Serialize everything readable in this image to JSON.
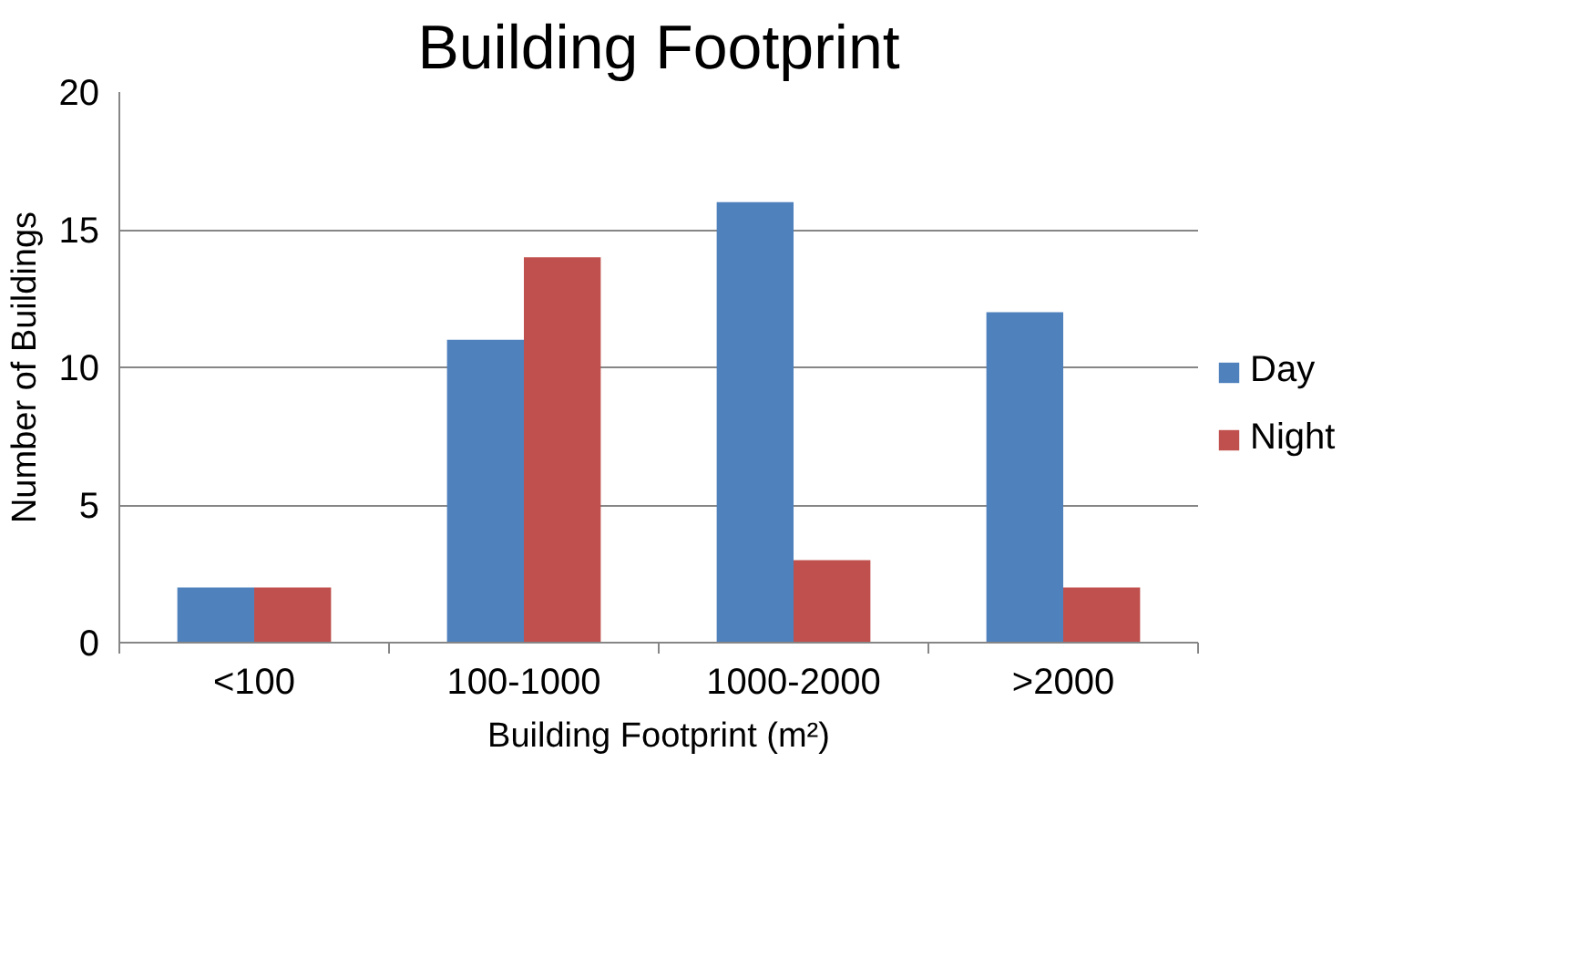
{
  "chart_data": {
    "type": "bar",
    "title": "Building Footprint",
    "xlabel": "Building Footprint (m²)",
    "ylabel": "Number of Buildings",
    "categories": [
      "<100",
      "100-1000",
      "1000-2000",
      ">2000"
    ],
    "series": [
      {
        "name": "Day",
        "color": "#4f81bd",
        "values": [
          2,
          11,
          16,
          12
        ]
      },
      {
        "name": "Night",
        "color": "#c0504d",
        "values": [
          2,
          14,
          3,
          2
        ]
      }
    ],
    "ylim": [
      0,
      20
    ],
    "yticks": [
      0,
      5,
      10,
      15,
      20
    ],
    "grid": "y",
    "legend": "right"
  }
}
